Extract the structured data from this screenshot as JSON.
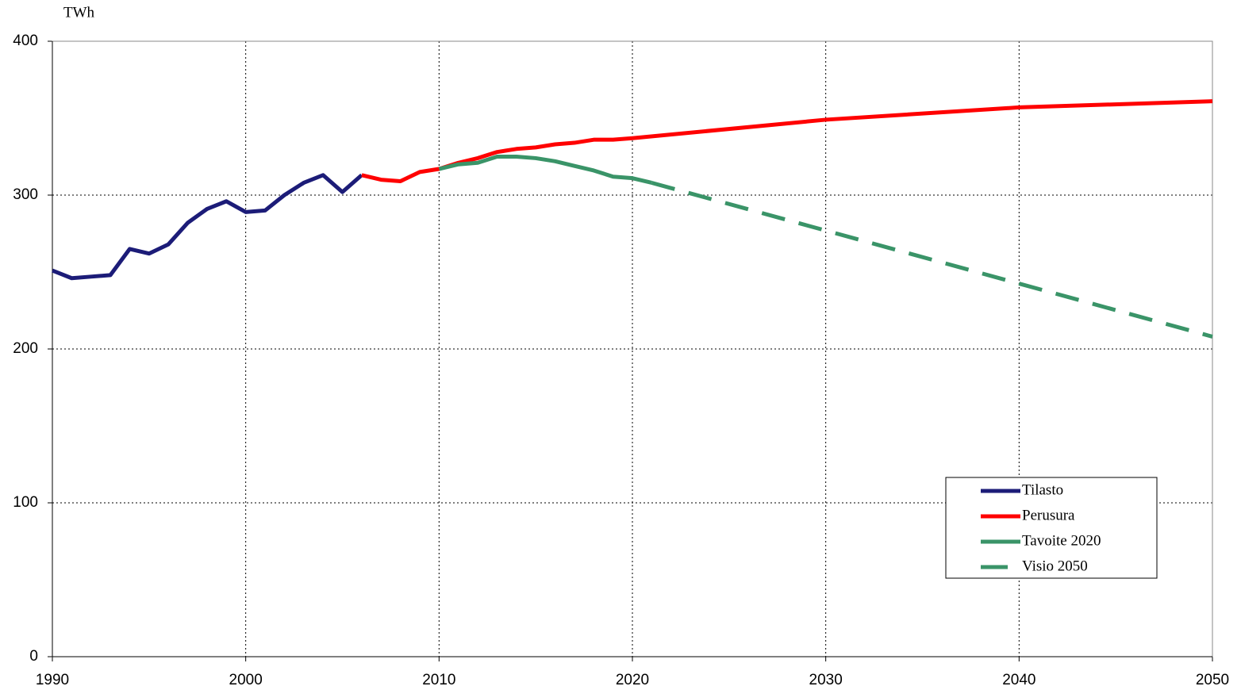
{
  "chart_data": {
    "type": "line",
    "y_label": "TWh",
    "xlim": [
      1990,
      2050
    ],
    "xticks": [
      1990,
      2000,
      2010,
      2020,
      2030,
      2040,
      2050
    ],
    "ylim": [
      0,
      400
    ],
    "yticks": [
      0,
      100,
      200,
      300,
      400
    ],
    "grid": true,
    "legend": "lower right",
    "series": [
      {
        "name": "Tilasto",
        "color": "#1c1c78",
        "line_style": "solid",
        "x": [
          1990,
          1991,
          1992,
          1993,
          1994,
          1995,
          1996,
          1997,
          1998,
          1999,
          2000,
          2001,
          2002,
          2003,
          2004,
          2005,
          2006
        ],
        "values": [
          251,
          246,
          247,
          248,
          265,
          262,
          268,
          282,
          291,
          296,
          289,
          290,
          300,
          308,
          313,
          302,
          313
        ]
      },
      {
        "name": "Perusura",
        "color": "#ff0000",
        "line_style": "solid",
        "x": [
          2006,
          2007,
          2008,
          2009,
          2010,
          2011,
          2012,
          2013,
          2014,
          2015,
          2016,
          2017,
          2018,
          2019,
          2020,
          2030,
          2040,
          2050
        ],
        "values": [
          313,
          310,
          309,
          315,
          317,
          321,
          324,
          328,
          330,
          331,
          333,
          334,
          336,
          336,
          337,
          349,
          357,
          361
        ]
      },
      {
        "name": "Tavoite 2020",
        "color": "#3a9468",
        "line_style": "solid",
        "x": [
          2010,
          2011,
          2012,
          2013,
          2014,
          2015,
          2016,
          2017,
          2018,
          2019,
          2020,
          2021
        ],
        "values": [
          317,
          320,
          321,
          325,
          325,
          324,
          322,
          319,
          316,
          312,
          311,
          308
        ]
      },
      {
        "name": "Visio 2050",
        "color": "#3a9468",
        "line_style": "dashed",
        "x": [
          2021,
          2050
        ],
        "values": [
          308,
          208
        ]
      }
    ]
  }
}
